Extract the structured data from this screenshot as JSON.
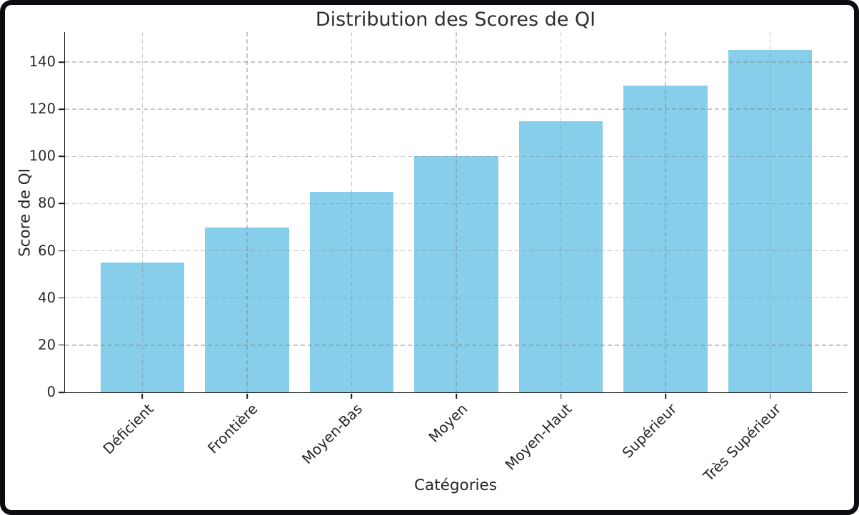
{
  "chart_data": {
    "type": "bar",
    "title": "Distribution des Scores de QI",
    "xlabel": "Catégories",
    "ylabel": "Score de QI",
    "categories": [
      "Déficient",
      "Frontière",
      "Moyen-Bas",
      "Moyen",
      "Moyen-Haut",
      "Supérieur",
      "Très Supérieur"
    ],
    "values": [
      55,
      70,
      85,
      100,
      115,
      130,
      145
    ],
    "yticks": [
      0,
      20,
      40,
      60,
      80,
      100,
      120,
      140
    ],
    "ylim": [
      0,
      152.7
    ],
    "xlim_padding": 0.74,
    "bar_width_fraction": 0.8,
    "grid": {
      "visible": true,
      "style": "dashed",
      "axes": "both",
      "drawn_above_bars": true
    },
    "legend": "none",
    "x_tick_rotation_deg": 45,
    "colors": {
      "bar": "#87CEEB",
      "grid": "#c9c9c9",
      "spine": "#1c1c1c",
      "text": "#262626",
      "frame": "#0c0c13",
      "background": "#ffffff"
    }
  }
}
